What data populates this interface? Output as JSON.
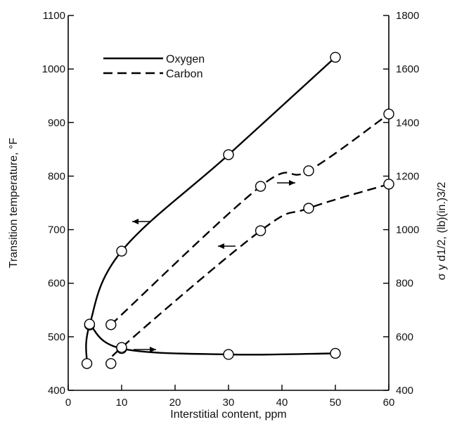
{
  "chart_data": {
    "type": "line",
    "xlabel": "Interstitial content, ppm",
    "ylabel_left": "Transition temperature, °F",
    "ylabel_right": "σ y d1/2, (lb)(in.)3/2",
    "xlim": [
      0,
      60
    ],
    "ylim_left": [
      400,
      1100
    ],
    "ylim_right": [
      400,
      1800
    ],
    "x_ticks": [
      "0",
      "10",
      "20",
      "30",
      "40",
      "50",
      "60"
    ],
    "y_left_ticks": [
      "400",
      "500",
      "600",
      "700",
      "800",
      "900",
      "1000",
      "1100"
    ],
    "y_right_ticks": [
      "400",
      "600",
      "800",
      "1000",
      "1200",
      "1400",
      "1600",
      "1800"
    ],
    "grid": false,
    "legend": [
      {
        "label": "Oxygen",
        "style": "solid"
      },
      {
        "label": "Carbon",
        "style": "dashed"
      }
    ],
    "series": [
      {
        "name": "Oxygen",
        "axis": "left",
        "style": "solid",
        "points": [
          [
            3.5,
            450
          ],
          [
            4,
            522
          ],
          [
            10,
            660
          ],
          [
            30,
            840
          ],
          [
            50,
            1022
          ]
        ]
      },
      {
        "name": "Oxygen",
        "axis": "right",
        "style": "solid",
        "points": [
          [
            4,
            647
          ],
          [
            10,
            556
          ],
          [
            30,
            534
          ],
          [
            50,
            538
          ]
        ]
      },
      {
        "name": "Carbon",
        "axis": "left",
        "style": "dashed",
        "points": [
          [
            8,
            450
          ],
          [
            10,
            480
          ],
          [
            36,
            698
          ],
          [
            45,
            740
          ],
          [
            60,
            785
          ]
        ]
      },
      {
        "name": "Carbon",
        "axis": "right",
        "style": "dashed",
        "points": [
          [
            8,
            645
          ],
          [
            36,
            1162
          ],
          [
            45,
            1220
          ],
          [
            60,
            1432
          ]
        ]
      }
    ]
  }
}
